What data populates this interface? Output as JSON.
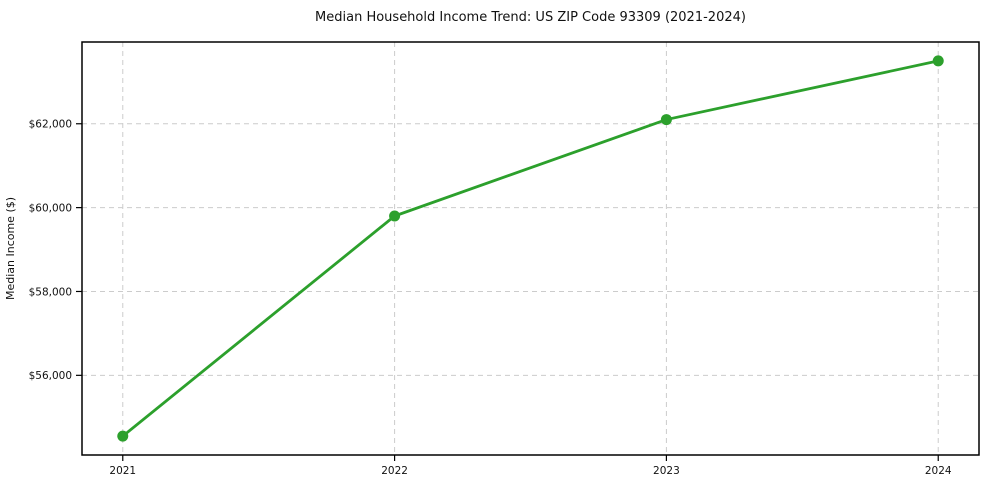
{
  "figure": {
    "background": "#ffffff"
  },
  "chart_data": {
    "type": "line",
    "title": "Median Household Income Trend: US ZIP Code 93309 (2021-2024)",
    "xlabel": "",
    "ylabel": "Median Income ($)",
    "x": [
      2021,
      2022,
      2023,
      2024
    ],
    "x_tick_labels": [
      "2021",
      "2022",
      "2023",
      "2024"
    ],
    "values": [
      54550,
      59800,
      62100,
      63500
    ],
    "y_ticks": [
      {
        "value": 56000,
        "label": "$56,000"
      },
      {
        "value": 58000,
        "label": "$58,000"
      },
      {
        "value": 60000,
        "label": "$60,000"
      },
      {
        "value": 62000,
        "label": "$62,000"
      }
    ],
    "ylim": [
      54100,
      63950
    ],
    "xlim": [
      2020.85,
      2024.15
    ],
    "grid": {
      "visible": true,
      "style": "dashed",
      "axes": "both"
    },
    "legend": {
      "visible": false
    },
    "marker": "circle",
    "colors": {
      "line": "#2ca02c",
      "marker": "#2ca02c",
      "grid": "#cccccc",
      "axis": "#000000",
      "text": "#111111",
      "background": "#ffffff"
    }
  }
}
